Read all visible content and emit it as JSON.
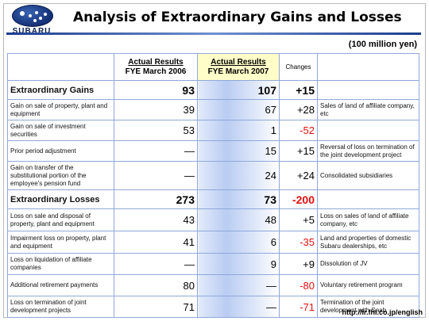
{
  "header": {
    "brand": "SUBARU",
    "title": "Analysis of Extraordinary Gains and Losses",
    "units": "(100 million yen)"
  },
  "table": {
    "columns": {
      "fy2006_line1": "Actual Results",
      "fy2006_line2": "FYE March 2006",
      "fy2007_line1": "Actual Results",
      "fy2007_line2": "FYE March 2007",
      "changes": "Changes"
    },
    "rows": [
      {
        "label": "Extraordinary Gains",
        "fy2006": "93",
        "fy2007": "107",
        "change": "+15",
        "note": ""
      },
      {
        "label": "Gain on sale of property, plant and equipment",
        "fy2006": "39",
        "fy2007": "67",
        "change": "+28",
        "note": "Sales of land of affiliate company, etc"
      },
      {
        "label": "Gain on sale of investment securities",
        "fy2006": "53",
        "fy2007": "1",
        "change": "-52",
        "note": ""
      },
      {
        "label": "Prior period adjustment",
        "fy2006": "—",
        "fy2007": "15",
        "change": "+15",
        "note": "Reversal of loss on termination of the joint development project"
      },
      {
        "label": "Gain on transfer of the substitutional portion of the employee's pension fund",
        "fy2006": "—",
        "fy2007": "24",
        "change": "+24",
        "note": "Consolidated subsidiaries"
      },
      {
        "label": "Extraordinary Losses",
        "fy2006": "273",
        "fy2007": "73",
        "change": "-200",
        "note": ""
      },
      {
        "label": "Loss on sale and disposal of property, plant and equipment",
        "fy2006": "43",
        "fy2007": "48",
        "change": "+5",
        "note": "Loss on sales of land of affiliate company, etc"
      },
      {
        "label": "Impairment loss on property, plant and equipment",
        "fy2006": "41",
        "fy2007": "6",
        "change": "-35",
        "note": "Land and properties of domestic Subaru dealerships, etc"
      },
      {
        "label": "Loss on liquidation of affiliate companies",
        "fy2006": "—",
        "fy2007": "9",
        "change": "+9",
        "note": "Dissolution of JV"
      },
      {
        "label": "Additional retirement payments",
        "fy2006": "80",
        "fy2007": "—",
        "change": "-80",
        "note": "Voluntary retirement program"
      },
      {
        "label": "Loss on termination of joint development projects",
        "fy2006": "71",
        "fy2007": "—",
        "change": "-71",
        "note": "Termination of the joint development with Saab"
      }
    ]
  },
  "footer": {
    "url": "http://ir.fhi.co.jp/english"
  },
  "colors": {
    "negative": "#e41010",
    "accent_blue": "#1b3d8f",
    "highlight_yellow": "#fffdc8"
  }
}
